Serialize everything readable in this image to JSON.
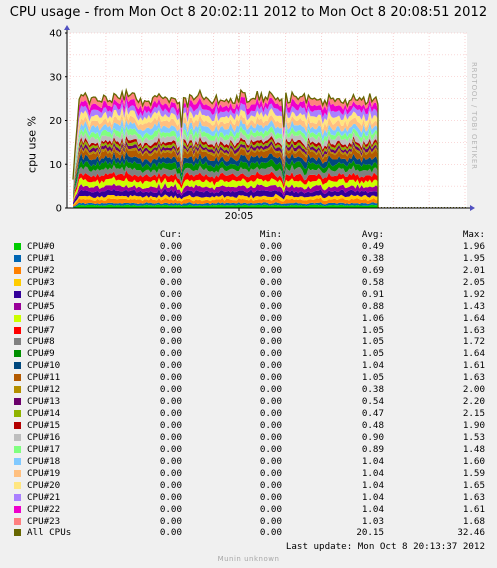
{
  "title": "CPU usage - from Mon Oct  8 20:02:11 2012 to Mon Oct  8 20:08:51 2012",
  "watermark": "RRDTOOL / TOBI OETIKER",
  "last_update": "Last update:  Mon Oct  8 20:13:37 2012",
  "footer": "Munin unknown",
  "legend_headers": {
    "cur": "Cur:",
    "min": "Min:",
    "avg": "Avg:",
    "max": "Max:"
  },
  "chart_data": {
    "type": "area",
    "title": "CPU usage - from Mon Oct  8 20:02:11 2012 to Mon Oct  8 20:08:51 2012",
    "ylabel": "cpu use %",
    "xlabel": "",
    "ylim": [
      0,
      40
    ],
    "yticks": [
      "0",
      "10",
      "20",
      "30",
      "40"
    ],
    "xticks": [
      "20:05"
    ],
    "x_range": [
      "20:02:11",
      "20:08:51"
    ],
    "stacked": true,
    "grid": true,
    "series": [
      {
        "name": "CPU#0",
        "color": "#00cc00",
        "cur": "0.00",
        "min": "0.00",
        "avg": "0.49",
        "max": "1.96"
      },
      {
        "name": "CPU#1",
        "color": "#0066b3",
        "cur": "0.00",
        "min": "0.00",
        "avg": "0.38",
        "max": "1.95"
      },
      {
        "name": "CPU#2",
        "color": "#ff8000",
        "cur": "0.00",
        "min": "0.00",
        "avg": "0.69",
        "max": "2.01"
      },
      {
        "name": "CPU#3",
        "color": "#ffcc00",
        "cur": "0.00",
        "min": "0.00",
        "avg": "0.58",
        "max": "2.05"
      },
      {
        "name": "CPU#4",
        "color": "#330099",
        "cur": "0.00",
        "min": "0.00",
        "avg": "0.91",
        "max": "1.92"
      },
      {
        "name": "CPU#5",
        "color": "#990099",
        "cur": "0.00",
        "min": "0.00",
        "avg": "0.88",
        "max": "1.43"
      },
      {
        "name": "CPU#6",
        "color": "#ccff00",
        "cur": "0.00",
        "min": "0.00",
        "avg": "1.06",
        "max": "1.64"
      },
      {
        "name": "CPU#7",
        "color": "#ff0000",
        "cur": "0.00",
        "min": "0.00",
        "avg": "1.05",
        "max": "1.63"
      },
      {
        "name": "CPU#8",
        "color": "#808080",
        "cur": "0.00",
        "min": "0.00",
        "avg": "1.05",
        "max": "1.72"
      },
      {
        "name": "CPU#9",
        "color": "#008f00",
        "cur": "0.00",
        "min": "0.00",
        "avg": "1.05",
        "max": "1.64"
      },
      {
        "name": "CPU#10",
        "color": "#00487d",
        "cur": "0.00",
        "min": "0.00",
        "avg": "1.04",
        "max": "1.61"
      },
      {
        "name": "CPU#11",
        "color": "#b35a00",
        "cur": "0.00",
        "min": "0.00",
        "avg": "1.05",
        "max": "1.63"
      },
      {
        "name": "CPU#12",
        "color": "#b38f00",
        "cur": "0.00",
        "min": "0.00",
        "avg": "0.38",
        "max": "2.00"
      },
      {
        "name": "CPU#13",
        "color": "#6b006b",
        "cur": "0.00",
        "min": "0.00",
        "avg": "0.54",
        "max": "2.20"
      },
      {
        "name": "CPU#14",
        "color": "#8fb300",
        "cur": "0.00",
        "min": "0.00",
        "avg": "0.47",
        "max": "2.15"
      },
      {
        "name": "CPU#15",
        "color": "#b30000",
        "cur": "0.00",
        "min": "0.00",
        "avg": "0.48",
        "max": "1.90"
      },
      {
        "name": "CPU#16",
        "color": "#bebebe",
        "cur": "0.00",
        "min": "0.00",
        "avg": "0.90",
        "max": "1.53"
      },
      {
        "name": "CPU#17",
        "color": "#80ff80",
        "cur": "0.00",
        "min": "0.00",
        "avg": "0.89",
        "max": "1.48"
      },
      {
        "name": "CPU#18",
        "color": "#80c9ff",
        "cur": "0.00",
        "min": "0.00",
        "avg": "1.04",
        "max": "1.60"
      },
      {
        "name": "CPU#19",
        "color": "#ffc080",
        "cur": "0.00",
        "min": "0.00",
        "avg": "1.04",
        "max": "1.59"
      },
      {
        "name": "CPU#20",
        "color": "#ffe680",
        "cur": "0.00",
        "min": "0.00",
        "avg": "1.04",
        "max": "1.65"
      },
      {
        "name": "CPU#21",
        "color": "#aa80ff",
        "cur": "0.00",
        "min": "0.00",
        "avg": "1.04",
        "max": "1.63"
      },
      {
        "name": "CPU#22",
        "color": "#ee00cc",
        "cur": "0.00",
        "min": "0.00",
        "avg": "1.04",
        "max": "1.61"
      },
      {
        "name": "CPU#23",
        "color": "#ff8080",
        "cur": "0.00",
        "min": "0.00",
        "avg": "1.03",
        "max": "1.68"
      }
    ],
    "total": {
      "name": "All CPUs",
      "color": "#666600",
      "cur": "0.00",
      "min": "0.00",
      "avg": "20.15",
      "max": "32.46"
    }
  }
}
